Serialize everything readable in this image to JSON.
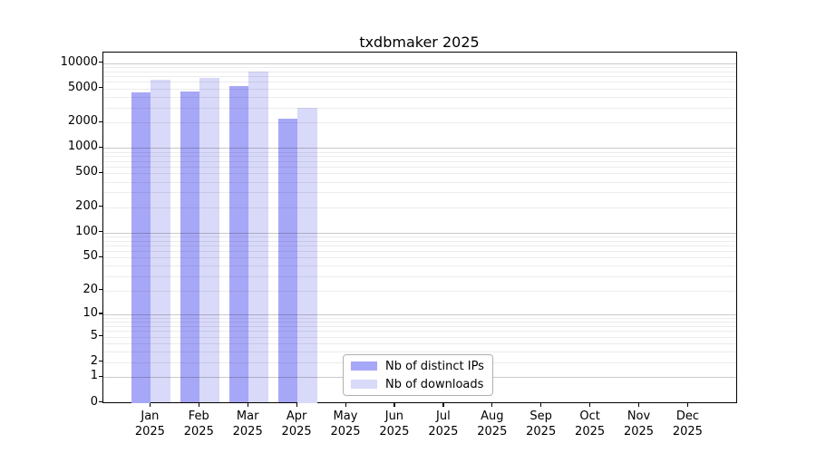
{
  "chart_data": {
    "type": "bar",
    "title": "txdbmaker 2025",
    "categories": [
      "Jan",
      "Feb",
      "Mar",
      "Apr",
      "May",
      "Jun",
      "Jul",
      "Aug",
      "Sep",
      "Oct",
      "Nov",
      "Dec"
    ],
    "year_label": "2025",
    "series": [
      {
        "name": "Nb of distinct IPs",
        "color": "#a7a7f7",
        "values": [
          4500,
          4600,
          5300,
          2200,
          null,
          null,
          null,
          null,
          null,
          null,
          null,
          null
        ]
      },
      {
        "name": "Nb of downloads",
        "color": "#d9d9f9",
        "values": [
          6300,
          6700,
          8000,
          3000,
          null,
          null,
          null,
          null,
          null,
          null,
          null,
          null
        ]
      }
    ],
    "y_axis": {
      "scale": "log1p",
      "ticks": [
        0,
        1,
        2,
        5,
        10,
        20,
        50,
        100,
        200,
        500,
        1000,
        2000,
        5000,
        10000
      ],
      "range": [
        0,
        10000
      ]
    },
    "x_axis": {
      "tick_label_line1": "month",
      "tick_label_line2": "2025"
    },
    "legend": {
      "position": "bottom-center",
      "items": [
        "Nb of distinct IPs",
        "Nb of downloads"
      ]
    },
    "grid": {
      "major_color": "rgba(0,0,0,0.21)",
      "minor_color": "rgba(0,0,0,0.075)",
      "vertical": false
    }
  }
}
